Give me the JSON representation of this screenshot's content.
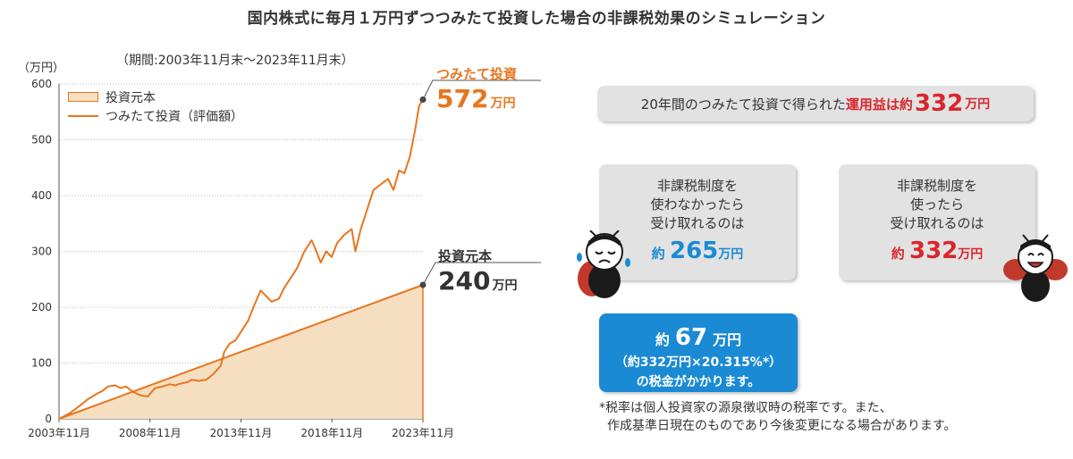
{
  "title": "国内株式に毎月１万円ずつつみたて投資した場合の非課税効果のシミュレーション",
  "period": "（期間:2003年11月末〜2023年11月末）",
  "y_unit": "（万円）",
  "legend": {
    "principal": "投資元本",
    "accumulated": "つみたて投資（評価額）"
  },
  "callouts": {
    "accum_label": "つみたて投資",
    "accum_value": "572",
    "accum_unit": "万円",
    "principal_label": "投資元本",
    "principal_value": "240",
    "principal_unit": "万円"
  },
  "colors": {
    "orange": "#e8761e",
    "fill": "#f5dfc0",
    "blue": "#1a8ad4",
    "red": "#d9262c",
    "gray_box": "#e2e2e2"
  },
  "bubble": {
    "prefix": "20年間のつみたて投資で得られた",
    "highlight": "運用益は約",
    "value": "332",
    "unit": "万円"
  },
  "left_box": {
    "line1": "非課税制度を",
    "line2": "使わなかったら",
    "line3": "受け取れるのは",
    "approx": "約",
    "value": "265",
    "unit": "万円"
  },
  "right_box": {
    "line1": "非課税制度を",
    "line2": "使ったら",
    "line3": "受け取れるのは",
    "approx": "約",
    "value": "332",
    "unit": "万円"
  },
  "tax_box": {
    "approx": "約",
    "value": "67",
    "unit": "万円",
    "formula": "（約332万円×20.315%*）",
    "text": "の税金がかかります。"
  },
  "note": {
    "line1": "*税率は個人投資家の源泉徴収時の税率です。また、",
    "line2": "作成基準日現在のものであり今後変更になる場合があります。"
  },
  "chart_data": {
    "type": "area",
    "x_ticks": [
      "2003年11月",
      "2008年11月",
      "2013年11月",
      "2018年11月",
      "2023年11月"
    ],
    "y_ticks": [
      0,
      100,
      200,
      300,
      400,
      500,
      600
    ],
    "ylim": [
      0,
      600
    ],
    "xlim": [
      2003.917,
      2023.917
    ],
    "grid": true,
    "legend_position": "top-left",
    "series": [
      {
        "name": "投資元本",
        "kind": "area",
        "x": [
          2003.917,
          2023.917
        ],
        "y": [
          0,
          240
        ]
      },
      {
        "name": "つみたて投資（評価額）",
        "kind": "line",
        "x": [
          2003.917,
          2004.5,
          2005.0,
          2005.5,
          2006.0,
          2006.3,
          2006.6,
          2007.0,
          2007.3,
          2007.6,
          2008.0,
          2008.4,
          2008.8,
          2009.0,
          2009.2,
          2009.6,
          2010.0,
          2010.3,
          2010.6,
          2011.0,
          2011.2,
          2011.6,
          2012.0,
          2012.4,
          2012.8,
          2013.0,
          2013.3,
          2013.6,
          2013.9,
          2014.3,
          2014.6,
          2015.0,
          2015.3,
          2015.6,
          2016.0,
          2016.3,
          2016.6,
          2017.0,
          2017.4,
          2017.8,
          2018.0,
          2018.3,
          2018.6,
          2018.9,
          2019.2,
          2019.6,
          2020.0,
          2020.2,
          2020.5,
          2020.9,
          2021.2,
          2021.6,
          2022.0,
          2022.3,
          2022.6,
          2022.9,
          2023.2,
          2023.5,
          2023.7,
          2023.917
        ],
        "y": [
          0,
          10,
          22,
          35,
          45,
          50,
          58,
          60,
          55,
          58,
          48,
          42,
          40,
          48,
          55,
          58,
          62,
          60,
          63,
          66,
          70,
          68,
          70,
          80,
          95,
          120,
          135,
          140,
          155,
          175,
          200,
          230,
          220,
          210,
          215,
          235,
          250,
          270,
          300,
          320,
          305,
          280,
          300,
          290,
          315,
          330,
          340,
          300,
          340,
          380,
          410,
          420,
          430,
          410,
          445,
          440,
          470,
          520,
          560,
          572
        ]
      }
    ]
  }
}
